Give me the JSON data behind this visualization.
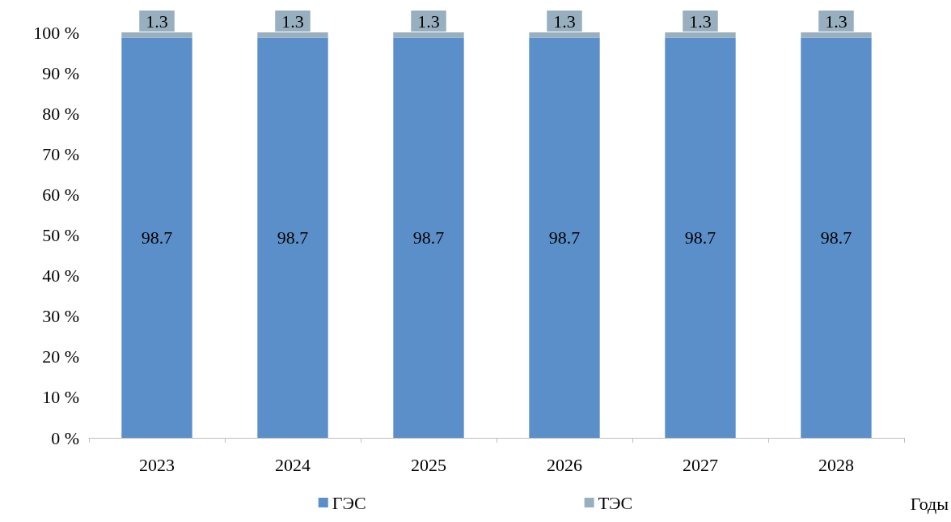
{
  "chart_data": {
    "type": "bar",
    "stacked": true,
    "xlabel": "Годы",
    "categories": [
      "2023",
      "2024",
      "2025",
      "2026",
      "2027",
      "2028"
    ],
    "series": [
      {
        "name": "ГЭС",
        "color": "#5b8fc9",
        "values": [
          98.7,
          98.7,
          98.7,
          98.7,
          98.7,
          98.7
        ]
      },
      {
        "name": "ТЭС",
        "color": "#98afbf",
        "values": [
          1.3,
          1.3,
          1.3,
          1.3,
          1.3,
          1.3
        ]
      }
    ],
    "ylim": [
      0,
      100
    ],
    "yticks": [
      {
        "value": 0,
        "label": "0 %"
      },
      {
        "value": 10,
        "label": "10 %"
      },
      {
        "value": 20,
        "label": "20 %"
      },
      {
        "value": 30,
        "label": "30 %"
      },
      {
        "value": 40,
        "label": "40 %"
      },
      {
        "value": 50,
        "label": "50 %"
      },
      {
        "value": 60,
        "label": "60 %"
      },
      {
        "value": 70,
        "label": "70 %"
      },
      {
        "value": 80,
        "label": "80 %"
      },
      {
        "value": 90,
        "label": "90 %"
      },
      {
        "value": 100,
        "label": "100 %"
      }
    ],
    "data_labels": true,
    "grid": false,
    "legend": "bottom"
  }
}
